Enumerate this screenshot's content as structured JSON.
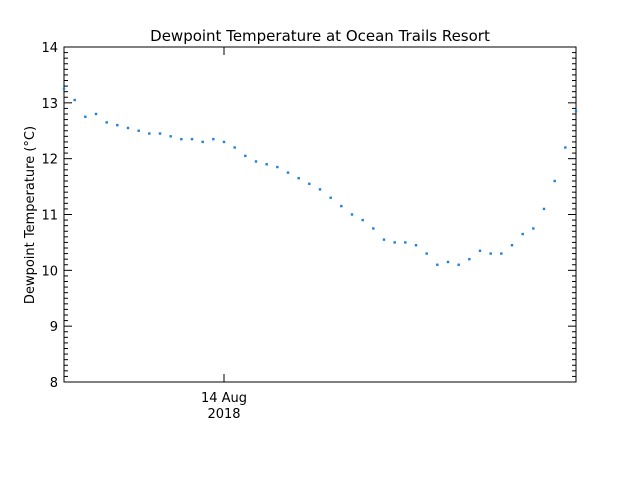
{
  "chart_data": {
    "type": "scatter",
    "title": "Dewpoint Temperature at Ocean Trails Resort",
    "ylabel": "Dewpoint Temperature (°C)",
    "xlabel": "",
    "ylim": [
      8,
      14
    ],
    "yticks": [
      "8",
      "9",
      "10",
      "11",
      "12",
      "13",
      "14"
    ],
    "xlim": [
      "2018-08-13T14:00",
      "2018-08-14T22:00"
    ],
    "xticks": [
      {
        "date": "2018-08-14T00:00",
        "label": "14 Aug",
        "sublabel": "2018"
      }
    ],
    "grid": false,
    "series": [
      {
        "color": "#1f7fd6",
        "points": [
          [
            "2018-08-13T14:00",
            13.25
          ],
          [
            "2018-08-13T14:40",
            13.05
          ],
          [
            "2018-08-13T15:20",
            12.75
          ],
          [
            "2018-08-13T16:00",
            12.8
          ],
          [
            "2018-08-13T16:40",
            12.65
          ],
          [
            "2018-08-13T17:20",
            12.6
          ],
          [
            "2018-08-13T18:00",
            12.55
          ],
          [
            "2018-08-13T18:40",
            12.5
          ],
          [
            "2018-08-13T19:20",
            12.45
          ],
          [
            "2018-08-13T20:00",
            12.45
          ],
          [
            "2018-08-13T20:40",
            12.4
          ],
          [
            "2018-08-13T21:20",
            12.35
          ],
          [
            "2018-08-13T22:00",
            12.35
          ],
          [
            "2018-08-13T22:40",
            12.3
          ],
          [
            "2018-08-13T23:20",
            12.35
          ],
          [
            "2018-08-14T00:00",
            12.3
          ],
          [
            "2018-08-14T00:40",
            12.2
          ],
          [
            "2018-08-14T01:20",
            12.05
          ],
          [
            "2018-08-14T02:00",
            11.95
          ],
          [
            "2018-08-14T02:40",
            11.9
          ],
          [
            "2018-08-14T03:20",
            11.85
          ],
          [
            "2018-08-14T04:00",
            11.75
          ],
          [
            "2018-08-14T04:40",
            11.65
          ],
          [
            "2018-08-14T05:20",
            11.55
          ],
          [
            "2018-08-14T06:00",
            11.45
          ],
          [
            "2018-08-14T06:40",
            11.3
          ],
          [
            "2018-08-14T07:20",
            11.15
          ],
          [
            "2018-08-14T08:00",
            11.0
          ],
          [
            "2018-08-14T08:40",
            10.9
          ],
          [
            "2018-08-14T09:20",
            10.75
          ],
          [
            "2018-08-14T10:00",
            10.55
          ],
          [
            "2018-08-14T10:40",
            10.5
          ],
          [
            "2018-08-14T11:20",
            10.5
          ],
          [
            "2018-08-14T12:00",
            10.45
          ],
          [
            "2018-08-14T12:40",
            10.3
          ],
          [
            "2018-08-14T13:20",
            10.1
          ],
          [
            "2018-08-14T14:00",
            10.15
          ],
          [
            "2018-08-14T14:40",
            10.1
          ],
          [
            "2018-08-14T15:20",
            10.2
          ],
          [
            "2018-08-14T16:00",
            10.35
          ],
          [
            "2018-08-14T16:40",
            10.3
          ],
          [
            "2018-08-14T17:20",
            10.3
          ],
          [
            "2018-08-14T18:00",
            10.45
          ],
          [
            "2018-08-14T18:40",
            10.65
          ],
          [
            "2018-08-14T19:20",
            10.75
          ],
          [
            "2018-08-14T20:00",
            11.1
          ],
          [
            "2018-08-14T20:40",
            11.6
          ],
          [
            "2018-08-14T21:20",
            12.2
          ],
          [
            "2018-08-14T22:00",
            12.85
          ]
        ]
      }
    ]
  }
}
